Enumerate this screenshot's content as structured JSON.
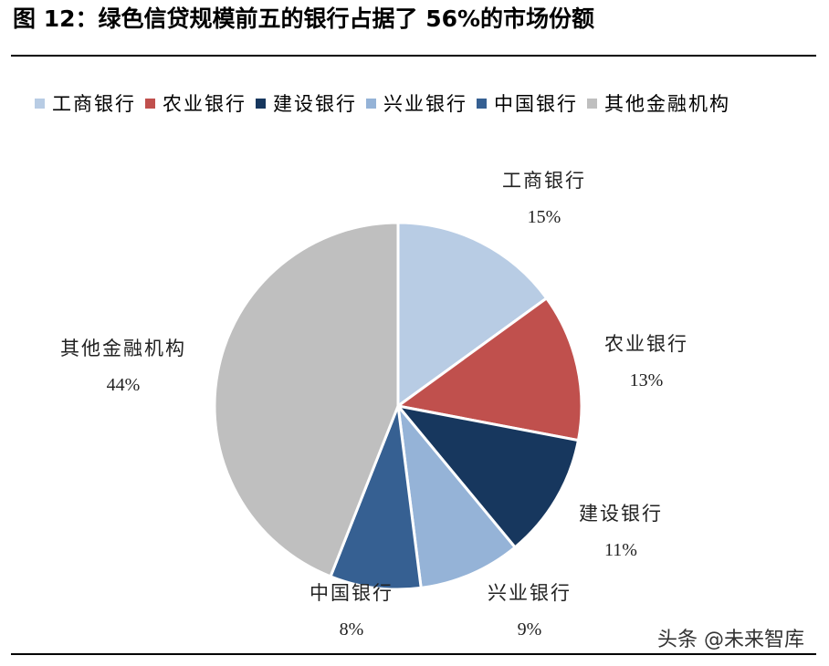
{
  "title": "图 12：绿色信贷规模前五的银行占据了 56%的市场份额",
  "watermark": "头条 @未来智库",
  "chart_data": {
    "type": "pie",
    "legend_position": "top",
    "categories": [
      "工商银行",
      "农业银行",
      "建设银行",
      "兴业银行",
      "中国银行",
      "其他金融机构"
    ],
    "values": [
      15,
      13,
      11,
      9,
      8,
      44
    ],
    "value_labels": [
      "15%",
      "13%",
      "11%",
      "9%",
      "8%",
      "44%"
    ],
    "colors": [
      "#b8cce4",
      "#c0504d",
      "#17375e",
      "#95b3d7",
      "#366092",
      "#bfbfbf"
    ]
  }
}
